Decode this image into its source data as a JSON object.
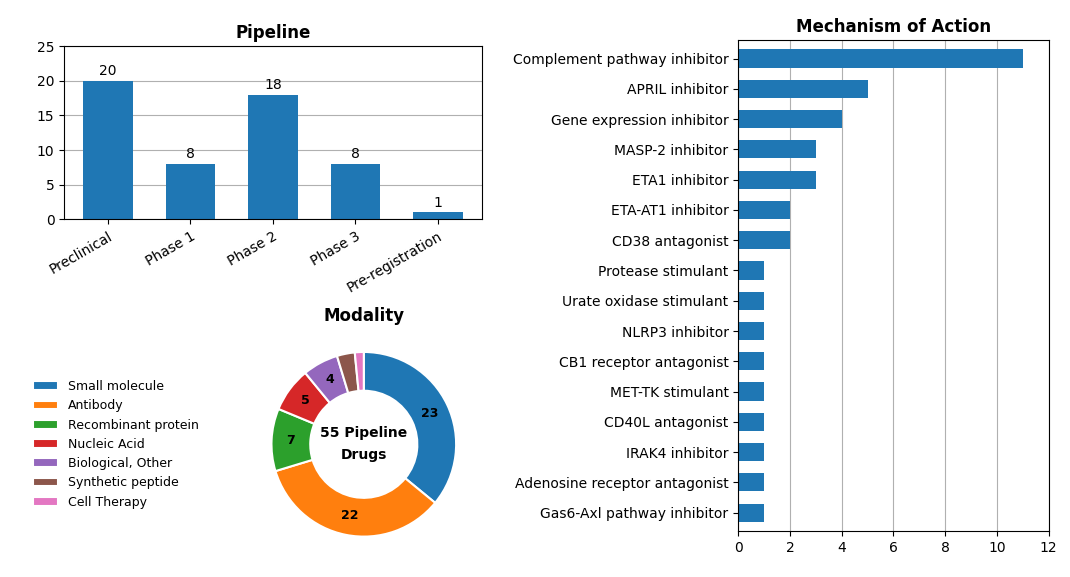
{
  "chart_data": [
    {
      "type": "bar",
      "title": "Pipeline",
      "categories": [
        "Preclinical",
        "Phase 1",
        "Phase 2",
        "Phase 3",
        "Pre-registration"
      ],
      "values": [
        20,
        8,
        18,
        8,
        1
      ],
      "ylim": [
        0,
        25
      ],
      "yticks": [
        0,
        5,
        10,
        15,
        20,
        25
      ],
      "grid": true,
      "data_labels": true
    },
    {
      "type": "pie",
      "title": "Modality",
      "categories": [
        "Small molecule",
        "Antibody",
        "Recombinant protein",
        "Nucleic Acid",
        "Biological, Other",
        "Synthetic peptide",
        "Cell Therapy"
      ],
      "values": [
        23,
        22,
        7,
        5,
        4,
        2,
        1
      ],
      "value_labels": [
        "23",
        "22",
        "7",
        "5",
        "4",
        null,
        null
      ],
      "data_labels": true,
      "annotations": [
        "55 Pipeline",
        "Drugs"
      ],
      "legend": "center left"
    },
    {
      "type": "bar",
      "title": "Mechanism of Action",
      "orientation": "horizontal",
      "categories": [
        "Gas6-Axl pathway inhibitor",
        "Adenosine receptor antagonist",
        "IRAK4 inhibitor",
        "CD40L antagonist",
        "MET-TK stimulant",
        "CB1 receptor antagonist",
        "NLRP3 inhibitor",
        "Urate oxidase stimulant",
        "Protease stimulant",
        "CD38 antagonist",
        "ETA-AT1 inhibitor",
        "ETA1 inhibitor",
        "MASP-2 inhibitor",
        "Gene expression inhibitor",
        "APRIL inhibitor",
        "Complement pathway inhibitor"
      ],
      "values": [
        1,
        1,
        1,
        1,
        1,
        1,
        1,
        1,
        1,
        2,
        2,
        3,
        3,
        4,
        5,
        11
      ],
      "xlim": [
        0,
        12
      ],
      "xticks": [
        0,
        2,
        4,
        6,
        8,
        10,
        12
      ],
      "grid": true
    }
  ]
}
